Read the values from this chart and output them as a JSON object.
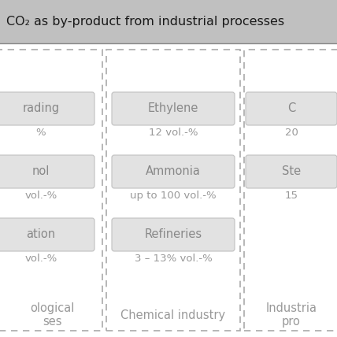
{
  "header_text": "CO₂ as by-product from industrial processes",
  "header_bg": "#c0c0c0",
  "content_bg": "#f5f5f5",
  "bg_color": "#f0f0f0",
  "col1_items": [
    {
      "name": "rading",
      "value": "%"
    },
    {
      "name": "nol",
      "value": "vol.-%"
    },
    {
      "name": "ation",
      "value": "vol.-%"
    }
  ],
  "col1_label": "ological\nses",
  "col2_items": [
    {
      "name": "Ethylene",
      "value": "12 vol.-%"
    },
    {
      "name": "Ammonia",
      "value": "up to 100 vol.-%"
    },
    {
      "name": "Refineries",
      "value": "3 – 13% vol.-%"
    }
  ],
  "col2_label": "Chemical industry",
  "col3_items": [
    {
      "name": "C",
      "value": "20"
    },
    {
      "name": "Ste",
      "value": "15"
    }
  ],
  "col3_label": "Industria\npro",
  "box_facecolor": "#e2e2e2",
  "box_edgecolor": "#c0c0c0",
  "dashed_color": "#aaaaaa",
  "item_name_color": "#888888",
  "item_value_color": "#999999",
  "label_color": "#999999",
  "header_fontsize": 11.5,
  "item_name_fontsize": 10.5,
  "item_value_fontsize": 9.5,
  "label_fontsize": 10.5
}
